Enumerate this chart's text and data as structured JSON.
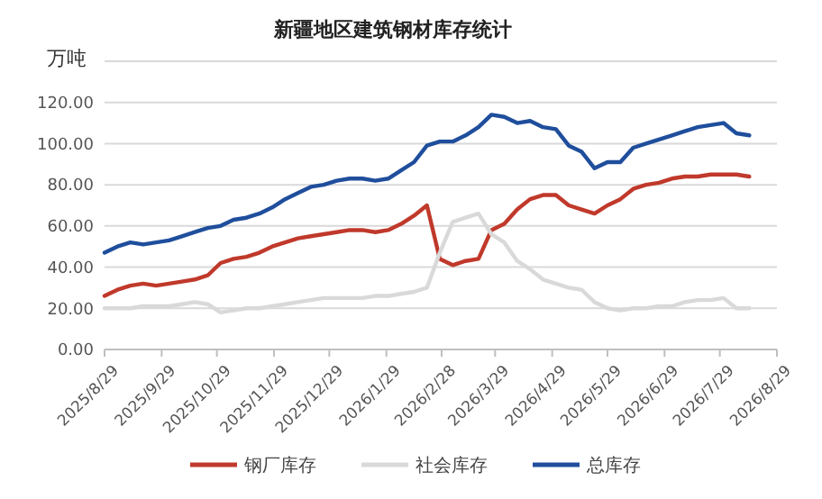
{
  "chart_data": {
    "type": "line",
    "title": "新疆地区建筑钢材库存统计",
    "ylabel": "万吨",
    "x": [
      "2025-08-29",
      "2025-09-05",
      "2025-09-12",
      "2025-09-19",
      "2025-09-26",
      "2025-10-03",
      "2025-10-10",
      "2025-10-17",
      "2025-10-24",
      "2025-10-31",
      "2025-11-07",
      "2025-11-14",
      "2025-11-21",
      "2025-11-28",
      "2025-12-05",
      "2025-12-12",
      "2025-12-19",
      "2025-12-26",
      "2026-01-02",
      "2026-01-09",
      "2026-01-16",
      "2026-01-23",
      "2026-01-30",
      "2026-02-06",
      "2026-02-13",
      "2026-02-20",
      "2026-02-27",
      "2026-03-06",
      "2026-03-13",
      "2026-03-20",
      "2026-03-27",
      "2026-04-03",
      "2026-04-10",
      "2026-04-17",
      "2026-04-24",
      "2026-05-01",
      "2026-05-08",
      "2026-05-15",
      "2026-05-22",
      "2026-05-29",
      "2026-06-05",
      "2026-06-12",
      "2026-06-19",
      "2026-06-26",
      "2026-07-03",
      "2026-07-10",
      "2026-07-17",
      "2026-07-24",
      "2026-07-31",
      "2026-08-07",
      "2026-08-14"
    ],
    "series": [
      {
        "name": "钢厂库存",
        "color": "#c0392b",
        "values": [
          26,
          29,
          31,
          32,
          31,
          32,
          33,
          34,
          36,
          42,
          44,
          45,
          47,
          50,
          52,
          54,
          55,
          56,
          57,
          58,
          58,
          57,
          58,
          61,
          65,
          70,
          44,
          41,
          43,
          44,
          58,
          61,
          68,
          73,
          75,
          75,
          70,
          68,
          66,
          70,
          73,
          78,
          80,
          81,
          83,
          84,
          84,
          85,
          85,
          85,
          84
        ]
      },
      {
        "name": "社会库存",
        "color": "#d9d9d9",
        "values": [
          20,
          20,
          20,
          21,
          21,
          21,
          22,
          23,
          22,
          18,
          19,
          20,
          20,
          21,
          22,
          23,
          24,
          25,
          25,
          25,
          25,
          26,
          26,
          27,
          28,
          30,
          47,
          62,
          64,
          66,
          56,
          52,
          43,
          39,
          34,
          32,
          30,
          29,
          23,
          20,
          19,
          20,
          20,
          21,
          21,
          23,
          24,
          24,
          25,
          20,
          20
        ]
      },
      {
        "name": "总库存",
        "color": "#1f4e9c",
        "values": [
          47,
          50,
          52,
          51,
          52,
          53,
          55,
          57,
          59,
          60,
          63,
          64,
          66,
          69,
          73,
          76,
          79,
          80,
          82,
          83,
          83,
          82,
          83,
          87,
          91,
          99,
          101,
          101,
          104,
          108,
          114,
          113,
          110,
          111,
          108,
          107,
          99,
          96,
          88,
          91,
          91,
          98,
          100,
          102,
          104,
          106,
          108,
          109,
          110,
          105,
          104
        ]
      }
    ],
    "xlim": [
      "2025-08-29",
      "2026-08-29"
    ],
    "xticks": [
      {
        "value": "2025-08-29",
        "label": "2025/8/29"
      },
      {
        "value": "2025-09-29",
        "label": "2025/9/29"
      },
      {
        "value": "2025-10-29",
        "label": "2025/10/29"
      },
      {
        "value": "2025-11-29",
        "label": "2025/11/29"
      },
      {
        "value": "2025-12-29",
        "label": "2025/12/29"
      },
      {
        "value": "2026-01-29",
        "label": "2026/1/29"
      },
      {
        "value": "2026-02-28",
        "label": "2026/2/28"
      },
      {
        "value": "2026-03-29",
        "label": "2026/3/29"
      },
      {
        "value": "2026-04-29",
        "label": "2026/4/29"
      },
      {
        "value": "2026-05-29",
        "label": "2026/5/29"
      },
      {
        "value": "2026-06-29",
        "label": "2026/6/29"
      },
      {
        "value": "2026-07-29",
        "label": "2026/7/29"
      },
      {
        "value": "2026-08-29",
        "label": "2026/8/29"
      }
    ],
    "ylim": [
      0,
      140
    ],
    "yticks": [
      {
        "value": 0,
        "label": "0.00"
      },
      {
        "value": 20,
        "label": "20.00"
      },
      {
        "value": 40,
        "label": "40.00"
      },
      {
        "value": 60,
        "label": "60.00"
      },
      {
        "value": 80,
        "label": "80.00"
      },
      {
        "value": 100,
        "label": "100.00"
      },
      {
        "value": 120,
        "label": "120.00"
      },
      {
        "value": 140,
        "label": null
      }
    ],
    "grid": "y",
    "legend": "bottom",
    "marker": "none",
    "line_style": "solid"
  }
}
